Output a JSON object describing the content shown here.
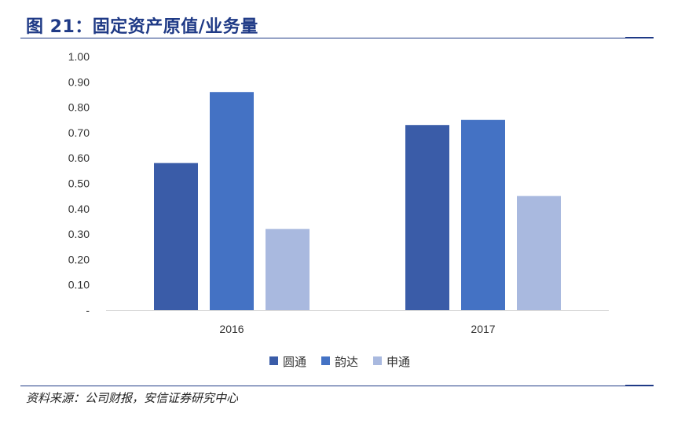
{
  "figure": {
    "title": "图 21：固定资产原值/业务量",
    "source": "资料来源：公司财报，安信证券研究中心"
  },
  "colors": {
    "accent": "#1f3a86",
    "axis": "#d9d9d9"
  },
  "chart_data": {
    "type": "bar",
    "title": "",
    "xlabel": "",
    "ylabel": "",
    "categories": [
      "2016",
      "2017"
    ],
    "series": [
      {
        "name": "圆通",
        "color": "#3a5ca8",
        "values": [
          0.58,
          0.73
        ]
      },
      {
        "name": "韵达",
        "color": "#4472c4",
        "values": [
          0.86,
          0.75
        ]
      },
      {
        "name": "申通",
        "color": "#a9b9df",
        "values": [
          0.32,
          0.45
        ]
      }
    ],
    "ylim": [
      0,
      1.0
    ],
    "yticks": [
      0,
      0.1,
      0.2,
      0.3,
      0.4,
      0.5,
      0.6,
      0.7,
      0.8,
      0.9,
      1.0
    ],
    "ytick_labels": [
      "-",
      "0.10",
      "0.20",
      "0.30",
      "0.40",
      "0.50",
      "0.60",
      "0.70",
      "0.80",
      "0.90",
      "1.00"
    ],
    "grid": false,
    "legend_position": "bottom"
  }
}
